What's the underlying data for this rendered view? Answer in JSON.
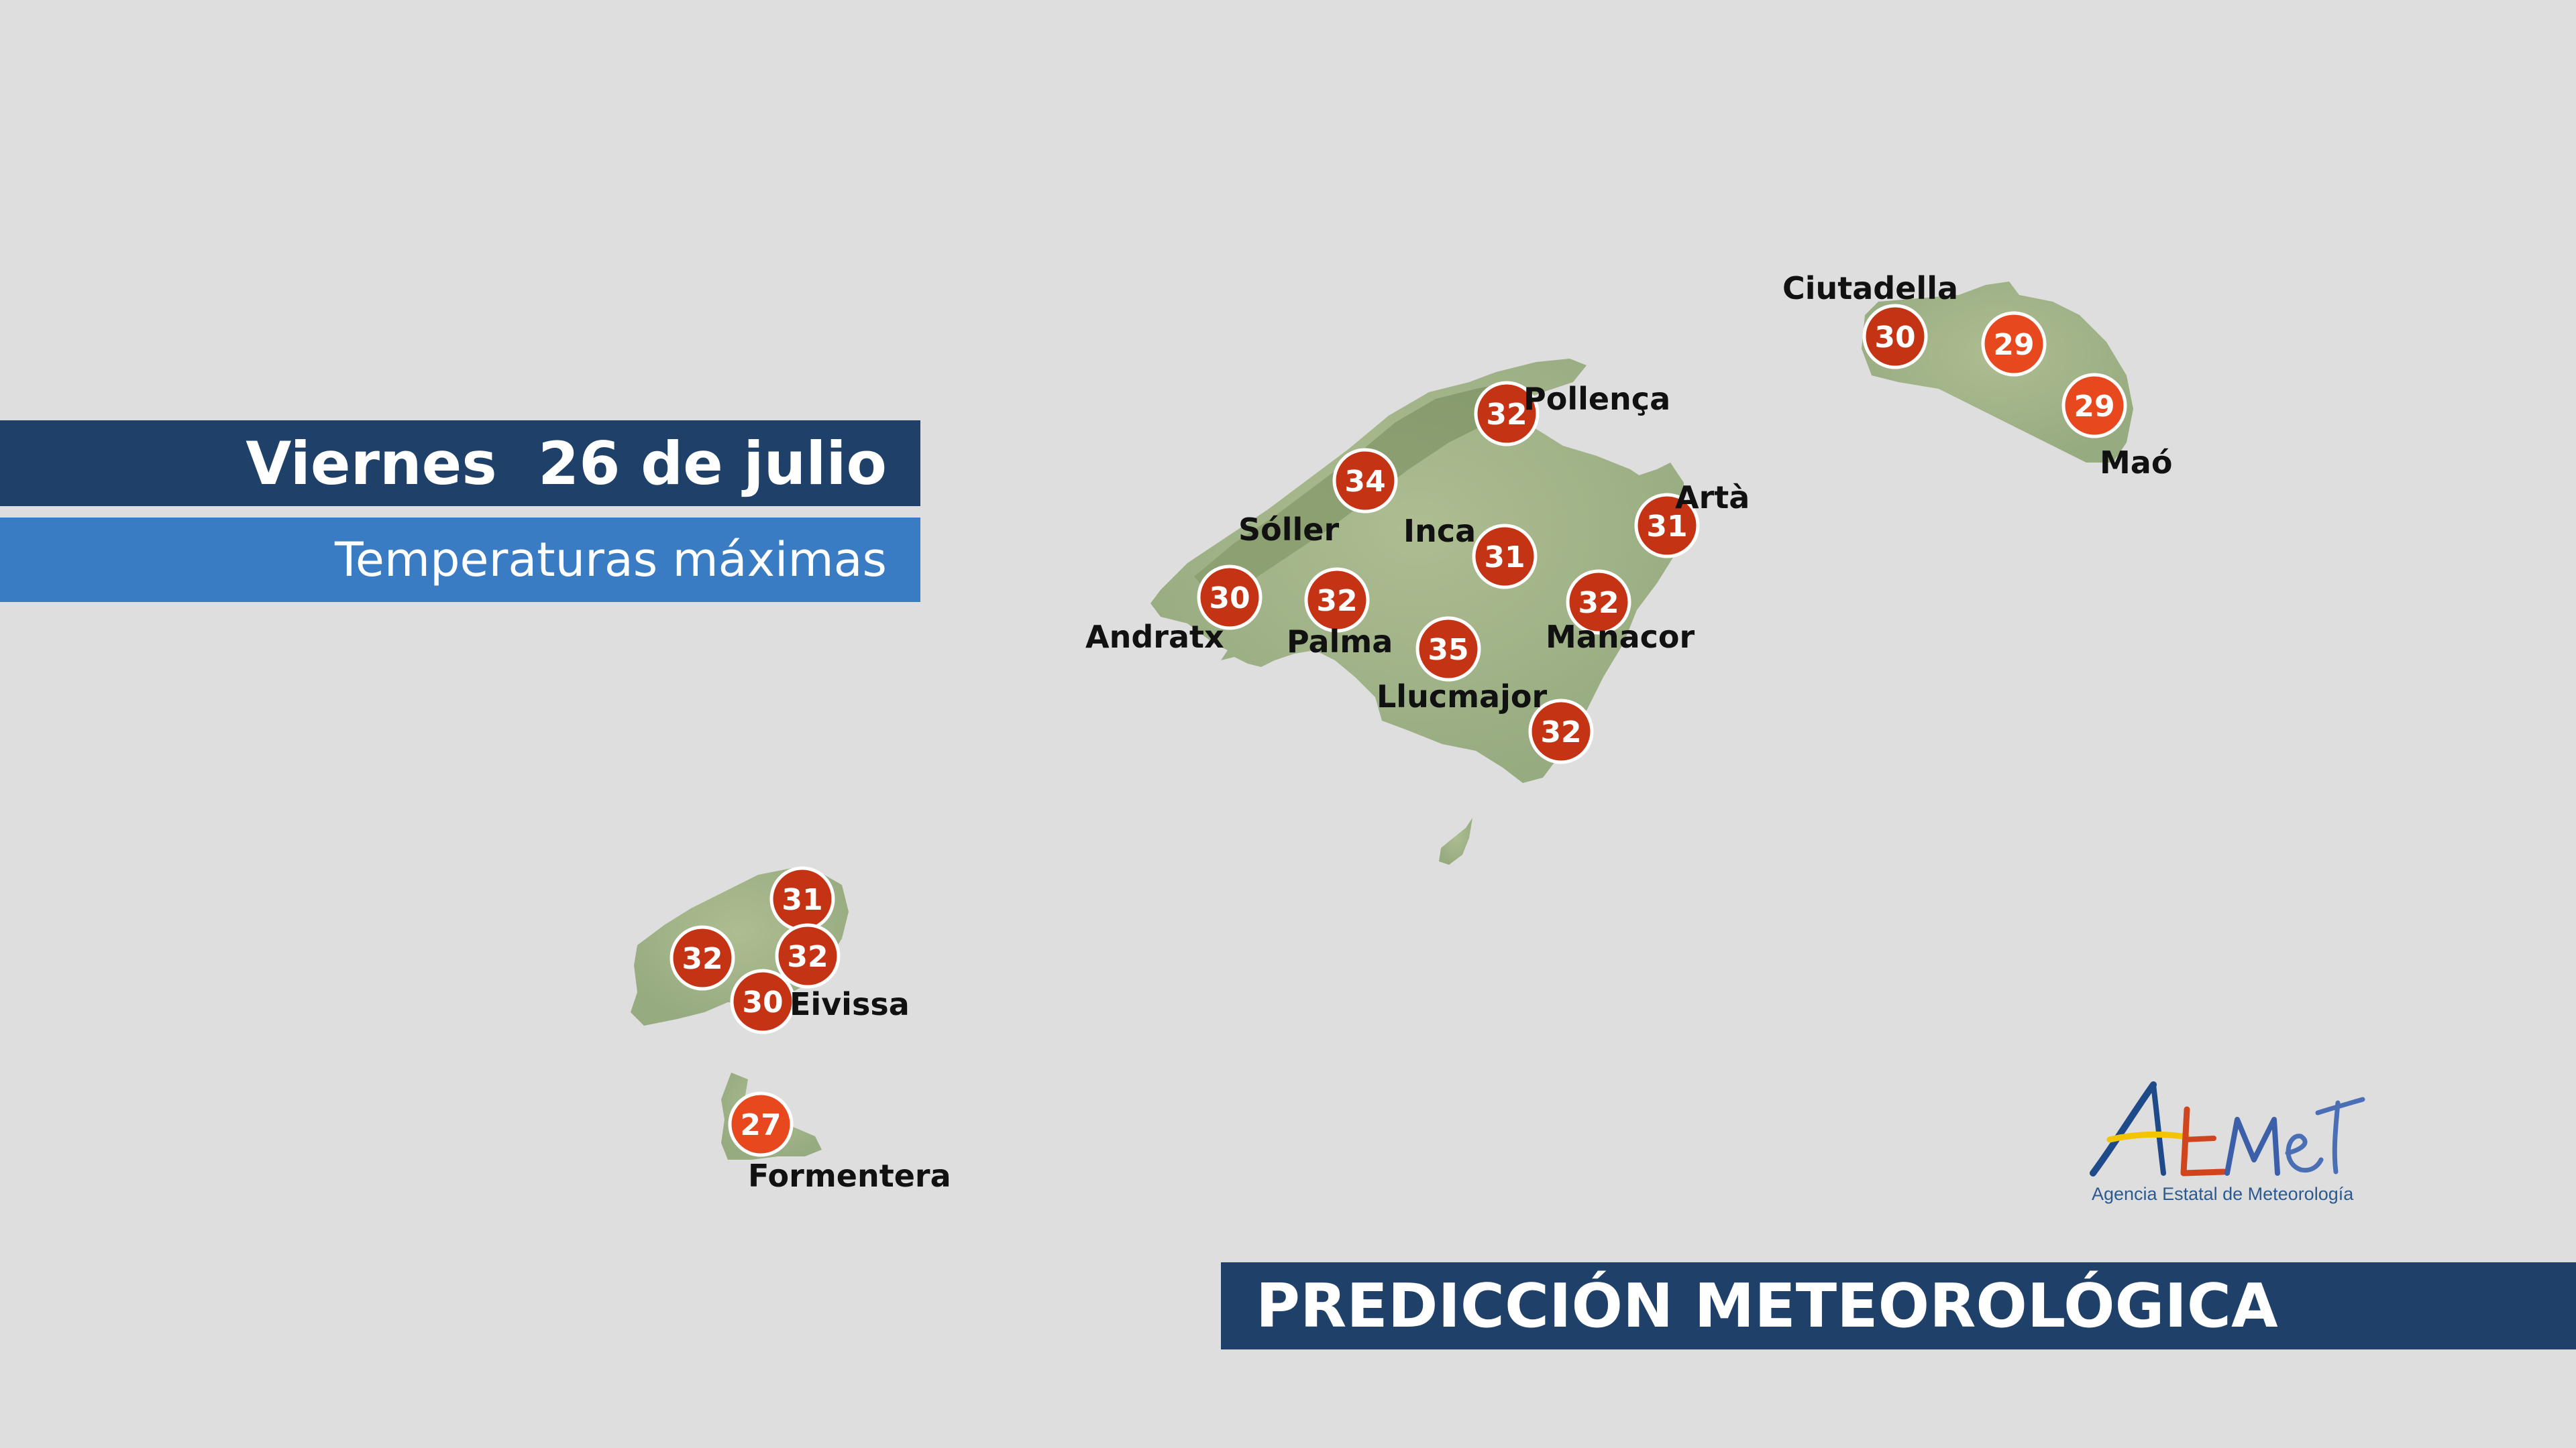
{
  "header": {
    "date": "Viernes  26 de julio",
    "subtitle": "Temperaturas máximas"
  },
  "footer": {
    "title": "PREDICCIÓN METEOROLÓGICA"
  },
  "logo": {
    "subtitle": "Agencia Estatal de Meteorología"
  },
  "colors": {
    "background": "#dedede",
    "land": "#a3b68a",
    "banner_dark": "#1f4068",
    "banner_light": "#3a7cc4",
    "temp_dark": "#c43414",
    "temp_light": "#e8481e"
  },
  "cities": [
    {
      "id": "ciutadella",
      "name": "Ciutadella",
      "temp": "30"
    },
    {
      "id": "mao",
      "name": "Maó",
      "temp": "29"
    },
    {
      "id": "pollenca",
      "name": "Pollença",
      "temp": "32"
    },
    {
      "id": "arta",
      "name": "Artà",
      "temp": "31"
    },
    {
      "id": "soller",
      "name": "Sóller",
      "temp": "34"
    },
    {
      "id": "inca",
      "name": "Inca",
      "temp": "31"
    },
    {
      "id": "andratx",
      "name": "Andratx",
      "temp": "30"
    },
    {
      "id": "palma",
      "name": "Palma",
      "temp": "32"
    },
    {
      "id": "manacor",
      "name": "Manacor",
      "temp": "32"
    },
    {
      "id": "llucmajor",
      "name": "Llucmajor",
      "temp": "35"
    },
    {
      "id": "eivissa",
      "name": "Eivissa",
      "temp": "30"
    },
    {
      "id": "formentera",
      "name": "Formentera",
      "temp": "27"
    }
  ],
  "unlabeled_temps": [
    {
      "id": "menorca-center",
      "temp": "29"
    },
    {
      "id": "mallorca-southeast",
      "temp": "32"
    },
    {
      "id": "ibiza-north",
      "temp": "31"
    },
    {
      "id": "ibiza-west",
      "temp": "32"
    },
    {
      "id": "ibiza-east",
      "temp": "32"
    }
  ]
}
